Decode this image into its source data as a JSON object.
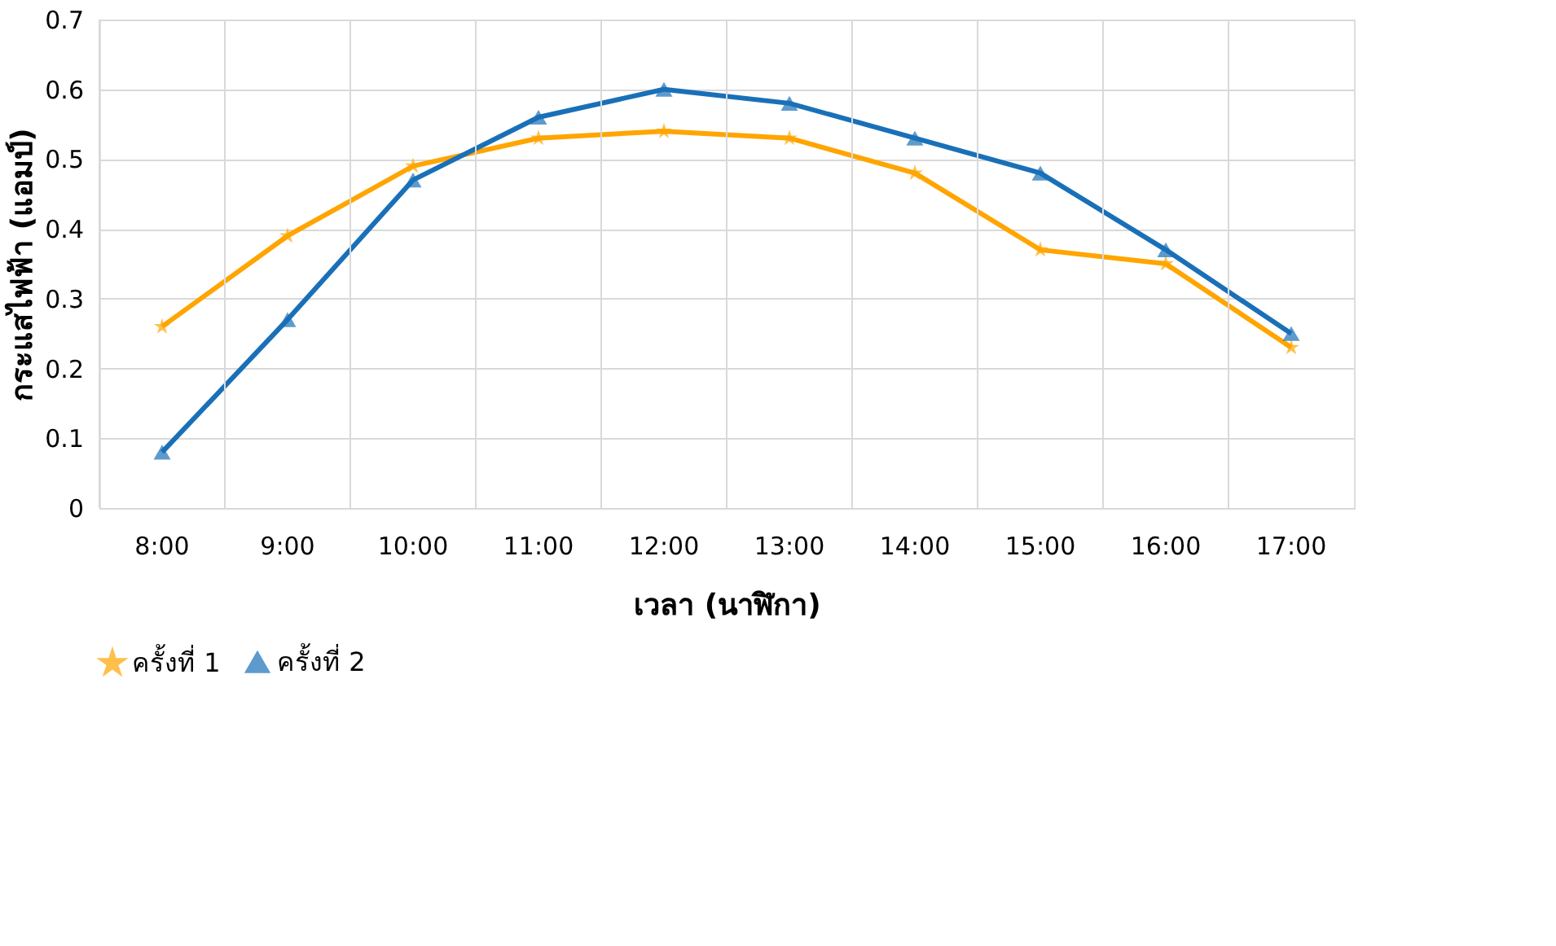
{
  "chart_data": {
    "type": "line",
    "xlabel": "เวลา (นาฬิกา)",
    "ylabel": "กระแสไฟฟ้า (แอมป์)",
    "categories": [
      "8:00",
      "9:00",
      "10:00",
      "11:00",
      "12:00",
      "13:00",
      "14:00",
      "15:00",
      "16:00",
      "17:00"
    ],
    "series": [
      {
        "name": "ครั้งที่ 1",
        "color": "#ffa500",
        "marker": "star",
        "values": [
          0.26,
          0.39,
          0.49,
          0.53,
          0.54,
          0.53,
          0.48,
          0.37,
          0.35,
          0.23
        ]
      },
      {
        "name": "ครั้งที่ 2",
        "color": "#1a70b8",
        "marker": "triangle",
        "values": [
          0.08,
          0.27,
          0.47,
          0.56,
          0.6,
          0.58,
          0.53,
          0.48,
          0.37,
          0.25
        ]
      }
    ],
    "ylim": [
      0,
      0.7
    ],
    "yticks": [
      {
        "value": 0,
        "label": "0"
      },
      0.1,
      0.2,
      0.3,
      0.4,
      0.5,
      0.6,
      0.7
    ],
    "grid": true,
    "legend": "bottom"
  }
}
